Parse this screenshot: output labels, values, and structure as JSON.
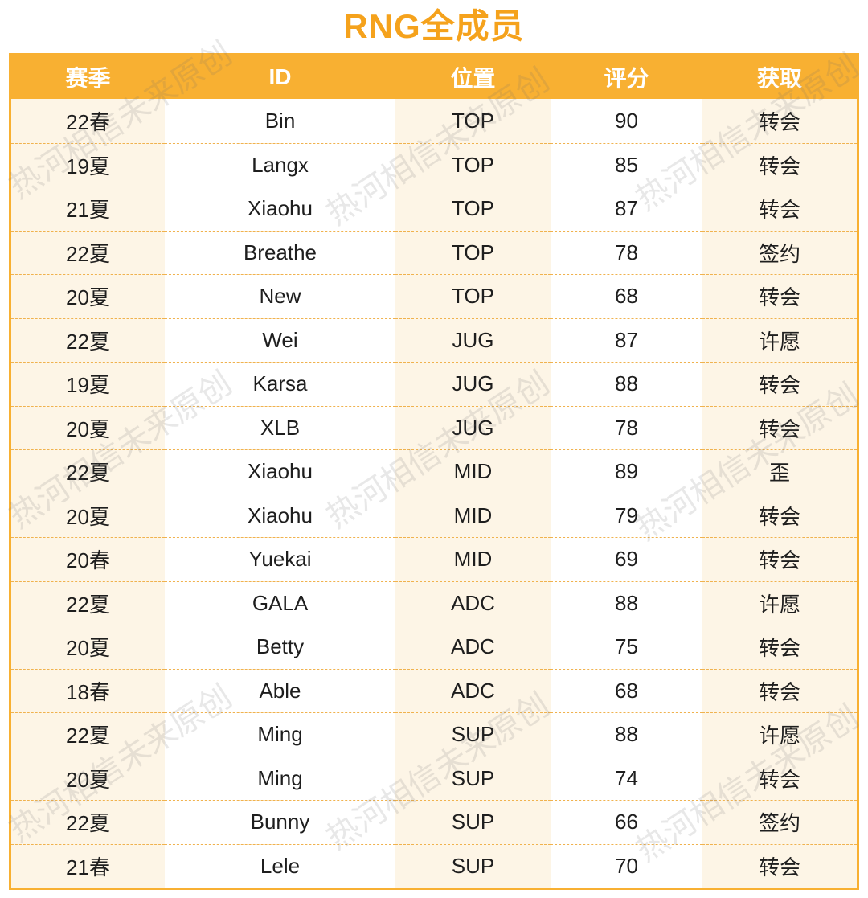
{
  "title": "RNG全成员",
  "watermark": "热河相信未来原创",
  "colors": {
    "accent": "#f8b032",
    "title": "#f5a21c",
    "stripe": "#fdf5e6",
    "text": "#1e1e1e",
    "header_text": "#ffffff",
    "dash": "#f0b24e"
  },
  "table": {
    "columns": [
      "赛季",
      "ID",
      "位置",
      "评分",
      "获取"
    ],
    "rows": [
      [
        "22春",
        "Bin",
        "TOP",
        "90",
        "转会"
      ],
      [
        "19夏",
        "Langx",
        "TOP",
        "85",
        "转会"
      ],
      [
        "21夏",
        "Xiaohu",
        "TOP",
        "87",
        "转会"
      ],
      [
        "22夏",
        "Breathe",
        "TOP",
        "78",
        "签约"
      ],
      [
        "20夏",
        "New",
        "TOP",
        "68",
        "转会"
      ],
      [
        "22夏",
        "Wei",
        "JUG",
        "87",
        "许愿"
      ],
      [
        "19夏",
        "Karsa",
        "JUG",
        "88",
        "转会"
      ],
      [
        "20夏",
        "XLB",
        "JUG",
        "78",
        "转会"
      ],
      [
        "22夏",
        "Xiaohu",
        "MID",
        "89",
        "歪"
      ],
      [
        "20夏",
        "Xiaohu",
        "MID",
        "79",
        "转会"
      ],
      [
        "20春",
        "Yuekai",
        "MID",
        "69",
        "转会"
      ],
      [
        "22夏",
        "GALA",
        "ADC",
        "88",
        "许愿"
      ],
      [
        "20夏",
        "Betty",
        "ADC",
        "75",
        "转会"
      ],
      [
        "18春",
        "Able",
        "ADC",
        "68",
        "转会"
      ],
      [
        "22夏",
        "Ming",
        "SUP",
        "88",
        "许愿"
      ],
      [
        "20夏",
        "Ming",
        "SUP",
        "74",
        "转会"
      ],
      [
        "22夏",
        "Bunny",
        "SUP",
        "66",
        "签约"
      ],
      [
        "21春",
        "Lele",
        "SUP",
        "70",
        "转会"
      ]
    ]
  }
}
